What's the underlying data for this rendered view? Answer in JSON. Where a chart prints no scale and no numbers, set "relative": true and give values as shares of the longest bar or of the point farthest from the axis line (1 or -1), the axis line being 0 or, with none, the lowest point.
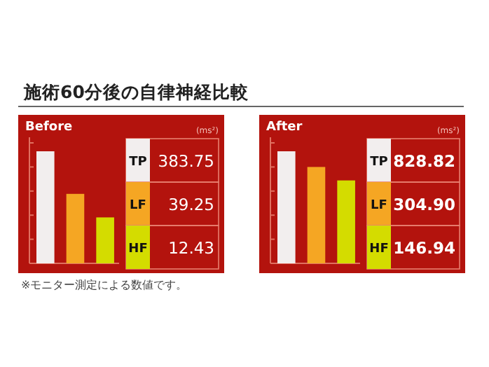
{
  "chart_data": [
    {
      "type": "bar",
      "title": "施術60分後の自律神経比較",
      "subtitle": "Before",
      "relative": true,
      "categories": [
        null,
        null,
        null
      ],
      "colors": [
        "#f2eeee",
        "#f5a623",
        "#d4dc00"
      ],
      "values": [
        1,
        0.62,
        0.41
      ],
      "annotations": [
        "※モニター測定による数値です。"
      ]
    },
    {
      "type": "other",
      "colors": [
        "#f2eeee",
        "#f5a623",
        "#d4dc00"
      ],
      "annotations": [
        "(ms²)",
        "TP",
        "383.75",
        "LF",
        "39.25",
        "HF",
        "12.43"
      ]
    },
    {
      "type": "bar",
      "subtitle": "After",
      "relative": true,
      "categories": [
        null,
        null,
        null
      ],
      "colors": [
        "#f2eeee",
        "#f5a623",
        "#d4dc00"
      ],
      "values": [
        1,
        0.86,
        0.74
      ]
    },
    {
      "type": "other",
      "colors": [
        "#f2eeee",
        "#f5a623",
        "#d4dc00"
      ],
      "annotations": [
        "(ms²)",
        "TP",
        "828.82",
        "LF",
        "304.90",
        "HF",
        "146.94"
      ]
    }
  ]
}
